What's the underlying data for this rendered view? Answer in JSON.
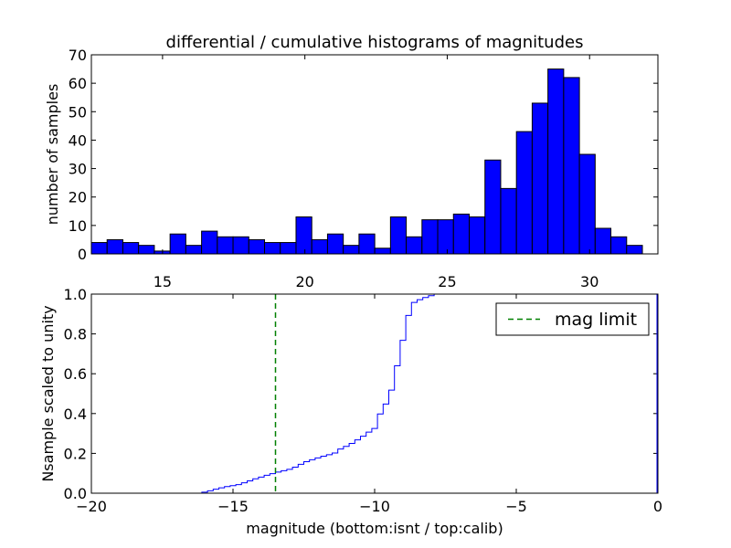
{
  "chart_data": [
    {
      "type": "bar",
      "title": "differential / cumulative histograms of magnitudes",
      "ylabel": "number of samples",
      "xlabel": "",
      "xlim": [
        12.5,
        32.4
      ],
      "ylim": [
        0,
        70
      ],
      "xticks": [
        15,
        20,
        25,
        30
      ],
      "yticks": [
        0,
        10,
        20,
        30,
        40,
        50,
        60,
        70
      ],
      "xtick_position": "top of bottom panel",
      "bar_color": "#0000ff",
      "edge_color": "#000000",
      "bins_start": 12.5,
      "bin_width": 0.553,
      "values": [
        4,
        5,
        4,
        3,
        1,
        7,
        3,
        8,
        6,
        6,
        5,
        4,
        4,
        13,
        5,
        7,
        3,
        7,
        2,
        13,
        6,
        12,
        12,
        14,
        13,
        33,
        23,
        43,
        53,
        65,
        62,
        35,
        9,
        6,
        3,
        0
      ]
    },
    {
      "type": "line",
      "drawstyle": "steps",
      "xlabel": "magnitude (bottom:isnt / top:calib)",
      "ylabel": "Nsample scaled to unity",
      "xlim": [
        -20,
        0
      ],
      "ylim": [
        0,
        1.0
      ],
      "xticks": [
        -20,
        -15,
        -10,
        -5,
        0
      ],
      "xtick_labels": [
        "−20",
        "−15",
        "−10",
        "−5",
        "0"
      ],
      "yticks": [
        0.0,
        0.2,
        0.4,
        0.6,
        0.8,
        1.0
      ],
      "ytick_labels": [
        "0.0",
        "0.2",
        "0.4",
        "0.6",
        "0.8",
        "1.0"
      ],
      "line_color": "#0000ff",
      "series": [
        {
          "x": [
            -20,
            -16.1,
            -15.9,
            -15.7,
            -15.5,
            -15.3,
            -15.1,
            -14.9,
            -14.7,
            -14.5,
            -14.3,
            -14.1,
            -13.9,
            -13.7,
            -13.5,
            -13.3,
            -13.1,
            -12.9,
            -12.7,
            -12.5,
            -12.3,
            -12.1,
            -11.9,
            -11.7,
            -11.5,
            -11.3,
            -11.1,
            -10.9,
            -10.7,
            -10.5,
            -10.3,
            -10.1,
            -9.9,
            -9.7,
            -9.5,
            -9.3,
            -9.1,
            -8.9,
            -8.7,
            -8.5,
            -8.3,
            -8.1,
            -7.9,
            -7.7
          ],
          "y": [
            0.0,
            0.005,
            0.012,
            0.02,
            0.027,
            0.033,
            0.038,
            0.043,
            0.052,
            0.062,
            0.072,
            0.081,
            0.09,
            0.098,
            0.106,
            0.113,
            0.12,
            0.131,
            0.145,
            0.158,
            0.168,
            0.177,
            0.186,
            0.193,
            0.202,
            0.222,
            0.235,
            0.25,
            0.268,
            0.286,
            0.307,
            0.325,
            0.398,
            0.448,
            0.518,
            0.64,
            0.768,
            0.893,
            0.958,
            0.972,
            0.983,
            0.992,
            1.0,
            1.0
          ]
        },
        {
          "name": "mag limit",
          "type": "vline",
          "x": -13.5,
          "color": "#008000",
          "linestyle": "dashed"
        }
      ],
      "legend": {
        "label": "mag limit",
        "placement": "top-right"
      }
    }
  ]
}
